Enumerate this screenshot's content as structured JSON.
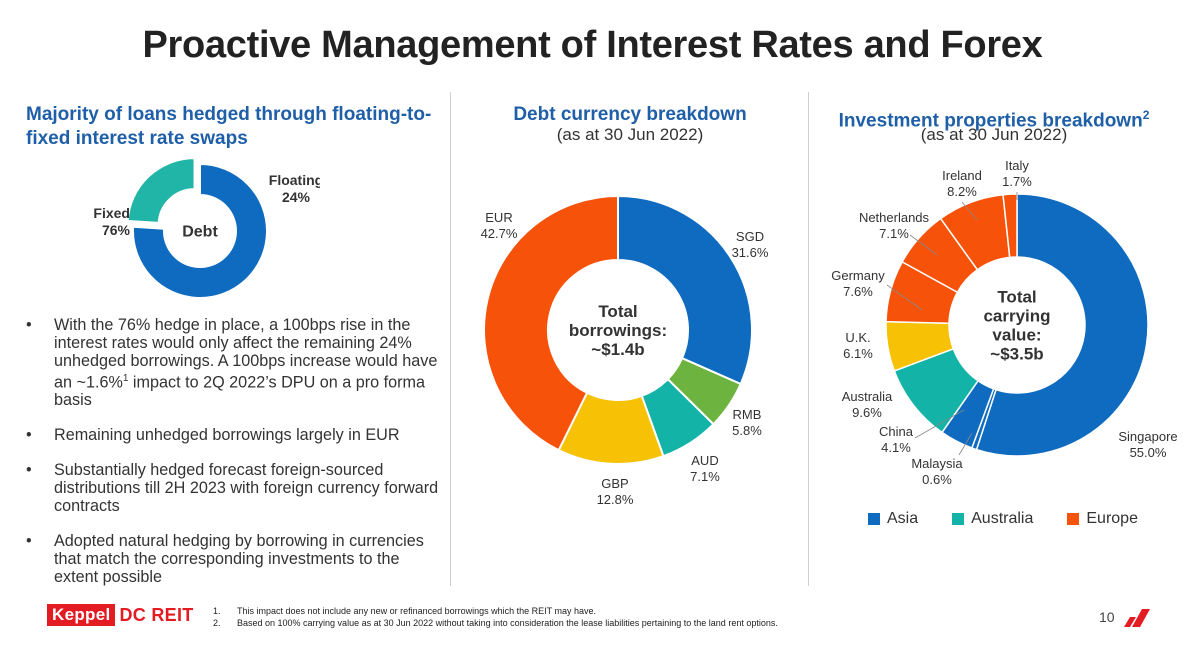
{
  "title": "Proactive Management of Interest Rates and Forex",
  "left": {
    "heading_line1": "Majority of loans hedged through floating-to-",
    "heading_line2": "fixed interest rate swaps",
    "bullets": [
      {
        "pre": "With the 76% hedge in place, a 100bps rise in the interest rates would only affect the remaining 24% unhedged borrowings. A 100bps increase would have an ~1.6%",
        "sup": "1",
        "post": " impact to 2Q 2022’s DPU on a pro forma basis"
      },
      {
        "pre": "Remaining unhedged borrowings largely in EUR",
        "sup": "",
        "post": ""
      },
      {
        "pre": "Substantially hedged forecast foreign-sourced distributions till 2H 2023 with foreign currency forward contracts",
        "sup": "",
        "post": ""
      },
      {
        "pre": "Adopted natural hedging by borrowing in currencies that match the corresponding investments to the extent possible",
        "sup": "",
        "post": ""
      }
    ],
    "bullet_char": "•"
  },
  "middle": {
    "heading": "Debt currency breakdown",
    "subheading": "(as at 30 Jun 2022)"
  },
  "right": {
    "heading": "Investment properties breakdown",
    "heading_sup": "2",
    "subheading": "(as at 30 Jun 2022)"
  },
  "chart_data": [
    {
      "type": "pie",
      "center_label": [
        "Debt"
      ],
      "slices": [
        {
          "label": "Fixed",
          "value": 76,
          "display": "76%",
          "color": "#0e6bbf"
        },
        {
          "label": "Floating",
          "value": 24,
          "display": "24%",
          "color": "#20b5a6"
        }
      ]
    },
    {
      "type": "pie",
      "center_label": [
        "Total",
        "borrowings:",
        "~$1.4b"
      ],
      "slices": [
        {
          "label": "SGD",
          "value": 31.6,
          "display": "31.6%",
          "color": "#0e6bbf"
        },
        {
          "label": "RMB",
          "value": 5.8,
          "display": "5.8%",
          "color": "#6db33f"
        },
        {
          "label": "AUD",
          "value": 7.1,
          "display": "7.1%",
          "color": "#13b3a8"
        },
        {
          "label": "GBP",
          "value": 12.8,
          "display": "12.8%",
          "color": "#f7c106"
        },
        {
          "label": "EUR",
          "value": 42.7,
          "display": "42.7%",
          "color": "#f7520a"
        }
      ]
    },
    {
      "type": "pie",
      "center_label": [
        "Total",
        "carrying",
        "value:",
        "~$3.5b"
      ],
      "slices": [
        {
          "label": "Singapore",
          "value": 55.0,
          "display": "55.0%",
          "color": "#0e6bbf"
        },
        {
          "label": "Malaysia",
          "value": 0.6,
          "display": "0.6%",
          "color": "#0e6bbf"
        },
        {
          "label": "China",
          "value": 4.1,
          "display": "4.1%",
          "color": "#0e6bbf"
        },
        {
          "label": "Australia",
          "value": 9.6,
          "display": "9.6%",
          "color": "#13b3a8"
        },
        {
          "label": "U.K.",
          "value": 6.1,
          "display": "6.1%",
          "color": "#f7c106"
        },
        {
          "label": "Germany",
          "value": 7.6,
          "display": "7.6%",
          "color": "#f7520a"
        },
        {
          "label": "Netherlands",
          "value": 7.1,
          "display": "7.1%",
          "color": "#f7520a"
        },
        {
          "label": "Ireland",
          "value": 8.2,
          "display": "8.2%",
          "color": "#f7520a"
        },
        {
          "label": "Italy",
          "value": 1.7,
          "display": "1.7%",
          "color": "#f7520a"
        }
      ],
      "legend": [
        {
          "label": "Asia",
          "color": "#0e6bbf"
        },
        {
          "label": "Australia",
          "color": "#13b3a8"
        },
        {
          "label": "Europe",
          "color": "#f7520a"
        }
      ]
    }
  ],
  "footnotes": [
    {
      "num": "1.",
      "text": "This impact does not include any new or refinanced borrowings which the REIT may have."
    },
    {
      "num": "2.",
      "text": "Based on 100% carrying value as at 30 Jun 2022 without taking into consideration the lease liabilities pertaining to the land rent options."
    }
  ],
  "logo": {
    "part1": "Keppel",
    "part2": "DC REIT"
  },
  "page_number": "10"
}
